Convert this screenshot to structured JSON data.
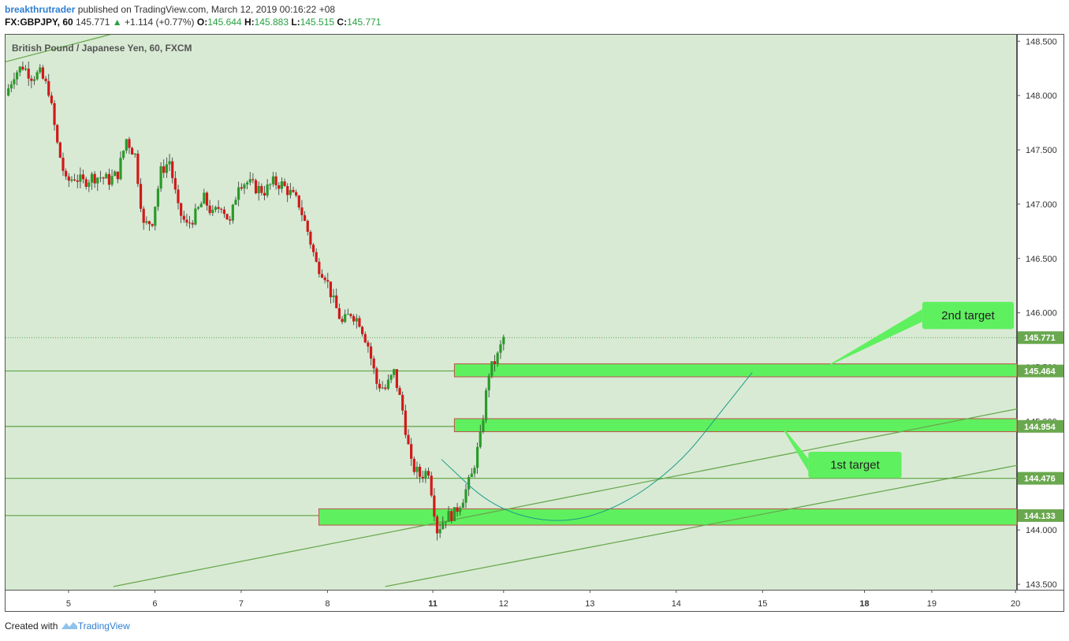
{
  "header": {
    "author": "breakthrutrader",
    "published": " published on TradingView.com, March 12, 2019 00:16:22 +08",
    "symbol": "FX:GBPJPY, 60",
    "price": "145.771",
    "change_arrow": "▲",
    "change": "+1.114 (+0.77%)",
    "o_label": "O:",
    "o": "145.644",
    "h_label": "H:",
    "h": "145.883",
    "l_label": "L:",
    "l": "145.515",
    "c_label": "C:",
    "c": "145.771"
  },
  "chart_data": {
    "type": "candlestick",
    "title": "British Pound / Japanese Yen, 60, FXCM",
    "ylim": [
      143.45,
      148.56
    ],
    "y_ticks": [
      143.5,
      144.0,
      144.5,
      145.0,
      145.5,
      146.0,
      146.5,
      147.0,
      147.5,
      148.0,
      148.5
    ],
    "y_tick_labels": [
      "143.500",
      "144.000",
      "144.500",
      "145.000",
      "145.500",
      "146.000",
      "146.500",
      "147.000",
      "147.500",
      "148.000",
      "148.500"
    ],
    "x_ticks": [
      {
        "label": "5",
        "t": 7.3,
        "bold": false
      },
      {
        "label": "6",
        "t": 17.3,
        "bold": false
      },
      {
        "label": "7",
        "t": 27.3,
        "bold": false
      },
      {
        "label": "8",
        "t": 37.3,
        "bold": false
      },
      {
        "label": "11",
        "t": 49.5,
        "bold": true
      },
      {
        "label": "12",
        "t": 57.7,
        "bold": false
      },
      {
        "label": "13",
        "t": 67.7,
        "bold": false
      },
      {
        "label": "14",
        "t": 77.7,
        "bold": false
      },
      {
        "label": "15",
        "t": 87.7,
        "bold": false
      },
      {
        "label": "18",
        "t": 99.5,
        "bold": true
      },
      {
        "label": "19",
        "t": 107.3,
        "bold": false
      },
      {
        "label": "20",
        "t": 117.0,
        "bold": false
      }
    ],
    "price_tags": [
      {
        "label": "145.771",
        "value": 145.771
      },
      {
        "label": "145.464",
        "value": 145.464
      },
      {
        "label": "144.954",
        "value": 144.954
      },
      {
        "label": "144.476",
        "value": 144.476
      },
      {
        "label": "144.133",
        "value": 144.133
      }
    ],
    "last_price": 145.771,
    "key_points": [
      [
        0,
        148.0
      ],
      [
        1,
        148.2
      ],
      [
        2,
        148.27
      ],
      [
        3,
        148.18
      ],
      [
        4,
        148.2
      ],
      [
        5,
        148.05
      ],
      [
        6,
        147.55
      ],
      [
        7,
        147.2
      ],
      [
        8,
        147.25
      ],
      [
        9,
        147.2
      ],
      [
        10,
        147.25
      ],
      [
        11,
        147.25
      ],
      [
        12,
        147.22
      ],
      [
        13,
        147.28
      ],
      [
        14,
        147.6
      ],
      [
        15,
        147.45
      ],
      [
        16,
        146.8
      ],
      [
        17,
        146.85
      ],
      [
        18,
        147.3
      ],
      [
        19,
        147.4
      ],
      [
        20,
        146.95
      ],
      [
        21,
        146.8
      ],
      [
        22,
        146.9
      ],
      [
        23,
        147.05
      ],
      [
        24,
        146.9
      ],
      [
        25,
        147.0
      ],
      [
        26,
        146.82
      ],
      [
        27,
        147.2
      ],
      [
        28,
        147.2
      ],
      [
        29,
        147.15
      ],
      [
        30,
        147.12
      ],
      [
        31,
        147.2
      ],
      [
        32,
        147.18
      ],
      [
        33,
        147.1
      ],
      [
        34,
        147.0
      ],
      [
        35,
        146.75
      ],
      [
        36,
        146.45
      ],
      [
        37,
        146.35
      ],
      [
        38,
        146.1
      ],
      [
        39,
        145.9
      ],
      [
        40,
        146.0
      ],
      [
        41,
        145.92
      ],
      [
        42,
        145.7
      ],
      [
        43,
        145.35
      ],
      [
        44,
        145.3
      ],
      [
        45,
        145.45
      ],
      [
        46,
        145.1
      ],
      [
        47,
        144.6
      ],
      [
        48,
        144.5
      ],
      [
        49,
        144.55
      ],
      [
        50,
        144.0
      ],
      [
        51,
        144.12
      ],
      [
        52,
        144.15
      ],
      [
        53,
        144.3
      ],
      [
        54,
        144.5
      ],
      [
        55,
        144.85
      ],
      [
        56,
        145.45
      ],
      [
        57,
        145.6
      ],
      [
        57.7,
        145.77
      ]
    ],
    "horizontal_levels": [
      145.464,
      144.954,
      144.476,
      144.133
    ],
    "zones": [
      {
        "x1": 52.0,
        "x2": 117.5,
        "lo": 145.41,
        "hi": 145.53
      },
      {
        "x1": 52.0,
        "x2": 117.5,
        "lo": 144.905,
        "hi": 145.025
      },
      {
        "x1": 36.3,
        "x2": 117.5,
        "lo": 144.045,
        "hi": 144.195
      }
    ],
    "trendlines": [
      {
        "t1": -0.5,
        "v1": 148.3,
        "t2": 12.5,
        "v2": 148.57
      },
      {
        "t1": 12.5,
        "v1": 143.48,
        "t2": 117.5,
        "v2": 145.12
      },
      {
        "t1": 44.0,
        "v1": 143.48,
        "t2": 117.5,
        "v2": 144.6
      }
    ],
    "projection_curve": [
      [
        50.5,
        144.65
      ],
      [
        56.5,
        144.2
      ],
      [
        64,
        144.05
      ],
      [
        71,
        144.2
      ],
      [
        78,
        144.6
      ],
      [
        83,
        145.1
      ],
      [
        86.5,
        145.45
      ]
    ],
    "annotations": [
      {
        "text": "2nd target",
        "box_t1": 106.2,
        "box_t2": 116.8,
        "box_v1": 145.85,
        "box_v2": 146.1,
        "pointer_t": 94.5,
        "pointer_v": 145.48
      },
      {
        "text": "1st target",
        "box_t1": 93.0,
        "box_t2": 103.8,
        "box_v1": 144.48,
        "box_v2": 144.72,
        "pointer_t": 89.5,
        "pointer_v": 145.0
      }
    ]
  },
  "footer": {
    "created_with": "Created with",
    "brand": "TradingView"
  }
}
